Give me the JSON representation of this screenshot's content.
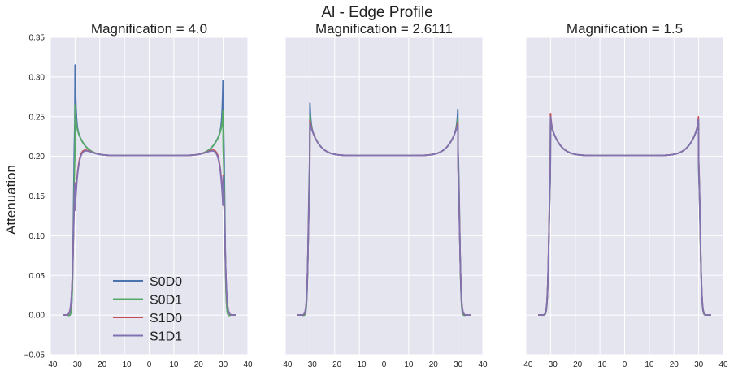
{
  "figure": {
    "suptitle": "Al - Edge Profile",
    "ylabel": "Attenuation"
  },
  "colors": {
    "panel_background": "#e5e5f0",
    "grid": "#ffffff",
    "series": [
      "#4c72b0",
      "#55a868",
      "#c44e52",
      "#8172b2"
    ]
  },
  "chart_data": [
    {
      "type": "line",
      "title": "Magnification = 4.0",
      "xlim": [
        -40,
        40
      ],
      "ylim": [
        -0.05,
        0.35
      ],
      "xticks": [
        "−40",
        "−30",
        "−20",
        "−10",
        "0",
        "10",
        "20",
        "30",
        "40"
      ],
      "yticks": [
        "−0.05",
        "0.00",
        "0.05",
        "0.10",
        "0.15",
        "0.20",
        "0.25",
        "0.30",
        "0.35"
      ],
      "grid": true,
      "legend": "lower-center",
      "edge_x": 30,
      "series": [
        {
          "name": "S0D0",
          "peak": 0.315,
          "rise": 0.6,
          "trough": -0.002
        },
        {
          "name": "S0D1",
          "peak": 0.265,
          "rise": 1.1,
          "trough": -0.003
        },
        {
          "name": "S1D0",
          "peak": 0.24,
          "rise": 3.2,
          "trough": 0.0
        },
        {
          "name": "S1D1",
          "peak": 0.24,
          "rise": 3.4,
          "trough": 0.0
        }
      ]
    },
    {
      "type": "line",
      "title": "Magnification = 2.6111",
      "xlim": [
        -40,
        40
      ],
      "ylim": [
        -0.05,
        0.35
      ],
      "xticks": [
        "−40",
        "−30",
        "−20",
        "−10",
        "0",
        "10",
        "20",
        "30",
        "40"
      ],
      "grid": true,
      "edge_x": 30,
      "series": [
        {
          "name": "S0D0",
          "peak": 0.267,
          "rise": 1.4,
          "trough": -0.003
        },
        {
          "name": "S0D1",
          "peak": 0.252,
          "rise": 1.6,
          "trough": -0.003
        },
        {
          "name": "S1D0",
          "peak": 0.245,
          "rise": 2.0,
          "trough": 0.0
        },
        {
          "name": "S1D1",
          "peak": 0.241,
          "rise": 2.2,
          "trough": 0.0
        }
      ]
    },
    {
      "type": "line",
      "title": "Magnification = 1.5",
      "xlim": [
        -40,
        40
      ],
      "ylim": [
        -0.05,
        0.35
      ],
      "xticks": [
        "−40",
        "−30",
        "−20",
        "−10",
        "0",
        "10",
        "20",
        "30",
        "40"
      ],
      "grid": true,
      "edge_x": 30,
      "series": [
        {
          "name": "S0D0",
          "peak": 0.24,
          "rise": 2.2,
          "trough": -0.003
        },
        {
          "name": "S0D1",
          "peak": 0.245,
          "rise": 2.0,
          "trough": -0.002
        },
        {
          "name": "S1D0",
          "peak": 0.254,
          "rise": 1.8,
          "trough": 0.0
        },
        {
          "name": "S1D1",
          "peak": 0.25,
          "rise": 2.0,
          "trough": 0.0
        }
      ]
    }
  ]
}
